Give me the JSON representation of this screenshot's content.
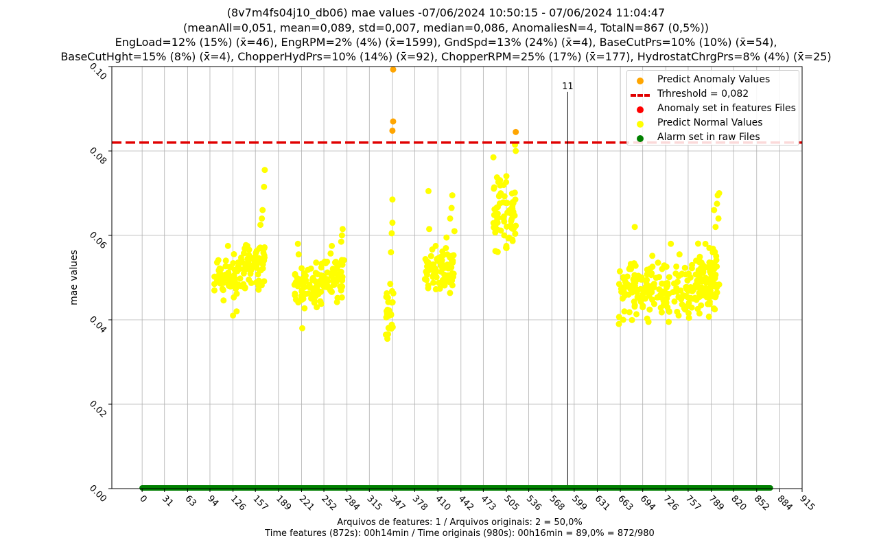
{
  "title": {
    "line1": "(8v7m4fs04j10_db06) mae values -07/06/2024 10:50:15 - 07/06/2024 11:04:47",
    "line2": "(meanAll=0,051, mean=0,089, std=0,007, median=0,086, AnomaliesN=4, TotalN=867 (0,5%))",
    "line3": "EngLoad=12% (15%) (x̄=46), EngRPM=2% (4%) (x̄=1599), GndSpd=13% (24%) (x̄=4), BaseCutPrs=10% (10%) (x̄=54),",
    "line4": "BaseCutHght=15% (8%) (x̄=4), ChopperHydPrs=10% (14%) (x̄=92), ChopperRPM=25% (17%) (x̄=177), HydrostatChrgPrs=8% (4%) (x̄=25)"
  },
  "footer": {
    "line1": "Arquivos de features: 1 / Arquivos originais: 2 = 50,0%",
    "line2": "Time features (872s): 00h14min / Time originais (980s): 00h16min = 89,0% = 872/980"
  },
  "legend": {
    "anomaly_values": "Predict Anomaly Values",
    "threshold": "Trhreshold = 0,082",
    "anomaly_features": "Anomaly set in features Files",
    "normal_values": "Predict Normal Values",
    "alarm_raw": "Alarm set in raw Files"
  },
  "colors": {
    "anomaly": "#ffa500",
    "threshold": "#e00000",
    "anomaly_features": "#ff0000",
    "normal": "#ffff00",
    "alarm": "#008000",
    "grid": "#b0b0b0"
  },
  "chart_data": {
    "type": "scatter",
    "ylabel": "mae values",
    "xlim": [
      -42,
      915
    ],
    "ylim": [
      0,
      0.1
    ],
    "xticks": [
      0,
      31,
      63,
      94,
      126,
      157,
      189,
      221,
      252,
      284,
      315,
      347,
      378,
      410,
      442,
      473,
      505,
      536,
      568,
      599,
      631,
      663,
      694,
      726,
      757,
      789,
      820,
      852,
      884,
      915
    ],
    "yticks": [
      "0.00",
      "0.02",
      "0.04",
      "0.06",
      "0.08",
      "0.10"
    ],
    "ytick_values": [
      0,
      0.02,
      0.04,
      0.06,
      0.08,
      0.1
    ],
    "threshold": 0.082,
    "marker_line": {
      "x": 590,
      "label": "11",
      "top": 0.094
    },
    "alarm_range": [
      0,
      871
    ],
    "anomalies": [
      {
        "x": 348,
        "y": 0.0993
      },
      {
        "x": 348,
        "y": 0.087
      },
      {
        "x": 347,
        "y": 0.0848
      },
      {
        "x": 518,
        "y": 0.0845
      }
    ],
    "normal_clusters": [
      {
        "x0": 100,
        "x1": 133,
        "y0": 0.043,
        "y1": 0.057,
        "n": 55,
        "spikes": [
          [
            119,
            0.0575
          ],
          [
            126,
            0.041
          ],
          [
            131,
            0.042
          ]
        ]
      },
      {
        "x0": 133,
        "x1": 170,
        "y0": 0.046,
        "y1": 0.06,
        "n": 75,
        "spikes": [
          [
            164,
            0.0625
          ],
          [
            166,
            0.064
          ],
          [
            167,
            0.066
          ],
          [
            169,
            0.0715
          ],
          [
            170,
            0.0755
          ],
          [
            146,
            0.0575
          ]
        ]
      },
      {
        "x0": 211,
        "x1": 244,
        "y0": 0.042,
        "y1": 0.054,
        "n": 60,
        "spikes": [
          [
            216,
            0.058
          ],
          [
            217,
            0.0555
          ],
          [
            222,
            0.038
          ]
        ]
      },
      {
        "x0": 244,
        "x1": 280,
        "y0": 0.043,
        "y1": 0.056,
        "n": 70,
        "spikes": [
          [
            263,
            0.0575
          ],
          [
            278,
            0.0615
          ],
          [
            277,
            0.06
          ],
          [
            276,
            0.0585
          ]
        ]
      },
      {
        "x0": 338,
        "x1": 349,
        "y0": 0.036,
        "y1": 0.048,
        "n": 24,
        "spikes": [
          [
            340,
            0.0355
          ],
          [
            345,
            0.056
          ],
          [
            346,
            0.0605
          ],
          [
            347,
            0.063
          ],
          [
            347,
            0.0685
          ],
          [
            344,
            0.0485
          ]
        ]
      },
      {
        "x0": 392,
        "x1": 433,
        "y0": 0.046,
        "y1": 0.058,
        "n": 80,
        "spikes": [
          [
            397,
            0.0705
          ],
          [
            398,
            0.0615
          ],
          [
            407,
            0.0575
          ],
          [
            422,
            0.0595
          ],
          [
            427,
            0.064
          ],
          [
            429,
            0.0665
          ],
          [
            430,
            0.0695
          ],
          [
            433,
            0.061
          ]
        ]
      },
      {
        "x0": 487,
        "x1": 519,
        "y0": 0.055,
        "y1": 0.076,
        "n": 70,
        "spikes": [
          [
            487,
            0.0785
          ],
          [
            505,
            0.0575
          ],
          [
            517,
            0.0815
          ],
          [
            518,
            0.08
          ]
        ]
      },
      {
        "x0": 661,
        "x1": 717,
        "y0": 0.039,
        "y1": 0.056,
        "n": 90,
        "spikes": [
          [
            661,
            0.039
          ],
          [
            667,
            0.04
          ],
          [
            683,
            0.062
          ],
          [
            702,
            0.0395
          ]
        ]
      },
      {
        "x0": 717,
        "x1": 797,
        "y0": 0.04,
        "y1": 0.054,
        "n": 130,
        "spikes": [
          [
            733,
            0.058
          ],
          [
            745,
            0.0555
          ],
          [
            768,
            0.054
          ],
          [
            730,
            0.0395
          ]
        ]
      },
      {
        "x0": 770,
        "x1": 800,
        "y0": 0.044,
        "y1": 0.06,
        "n": 45,
        "spikes": [
          [
            793,
            0.066
          ],
          [
            798,
            0.0695
          ],
          [
            800,
            0.07
          ],
          [
            797,
            0.0675
          ],
          [
            799,
            0.064
          ],
          [
            795,
            0.062
          ]
        ]
      }
    ]
  }
}
